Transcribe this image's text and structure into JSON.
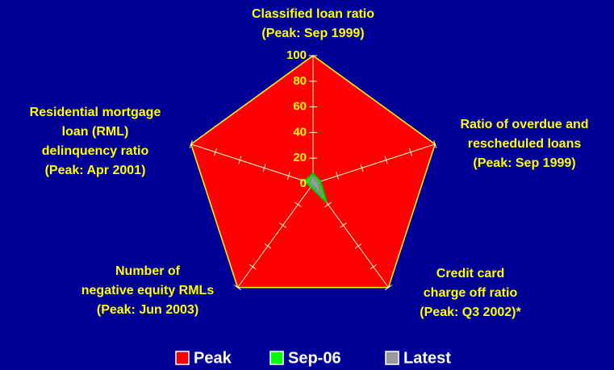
{
  "chart_data": {
    "type": "radar",
    "categories": [
      [
        "Classified loan ratio",
        "(Peak: Sep 1999)"
      ],
      [
        "Ratio of overdue and",
        "rescheduled loans",
        "(Peak: Sep 1999)"
      ],
      [
        "Credit card",
        "charge off ratio",
        "(Peak: Q3 2002)*"
      ],
      [
        "Number of",
        "negative equity RMLs",
        "(Peak: Jun 2003)"
      ],
      [
        "Residential mortgage",
        "loan (RML)",
        "delinquency ratio",
        "(Peak: Apr 2001)"
      ]
    ],
    "series": [
      {
        "name": "Peak",
        "color": "#ff0000",
        "values": [
          100,
          100,
          100,
          100,
          100
        ]
      },
      {
        "name": "Sep-06",
        "color": "#00ff00",
        "values": [
          8,
          6,
          18,
          3,
          7
        ]
      },
      {
        "name": "Latest",
        "color": "#999999",
        "values": [
          6,
          4,
          12,
          1,
          3
        ]
      }
    ],
    "ylim": [
      0,
      100
    ],
    "yticks": [
      0,
      20,
      40,
      60,
      80,
      100
    ]
  }
}
